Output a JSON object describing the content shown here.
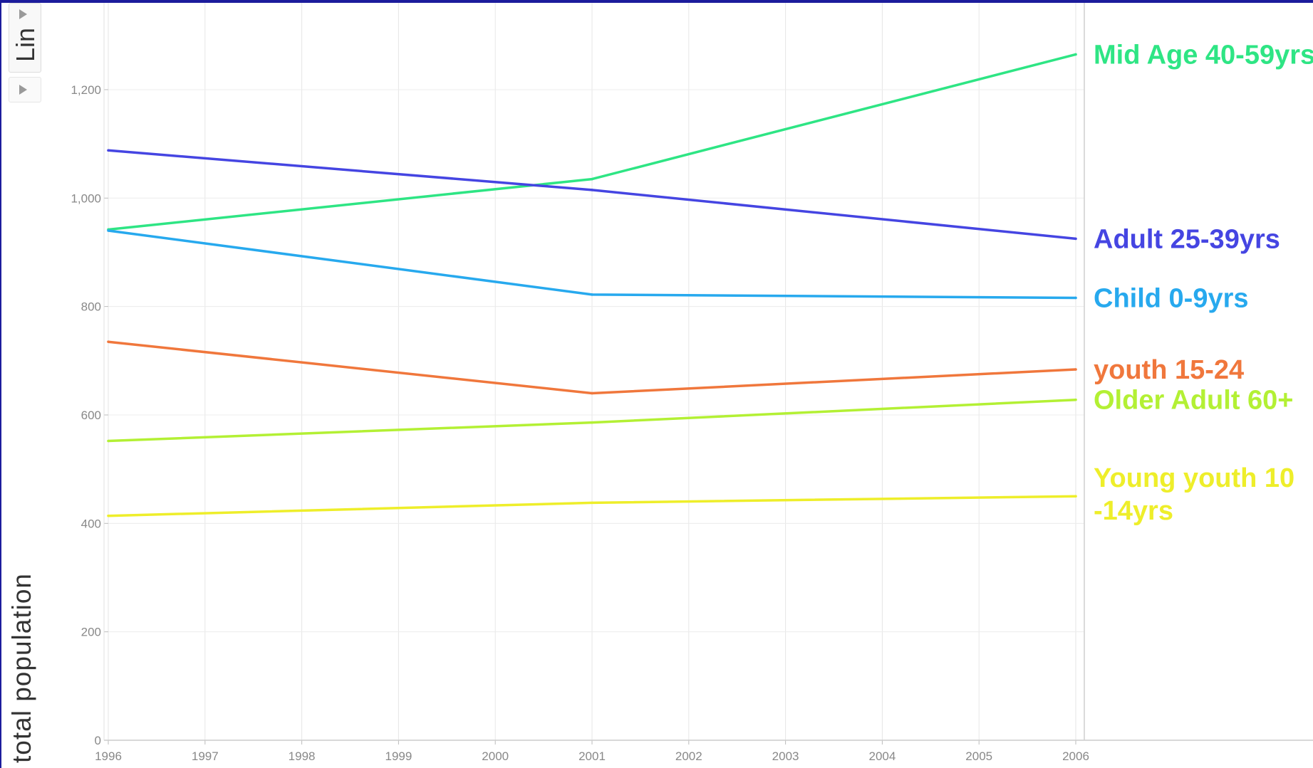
{
  "controls": {
    "scale_label": "Lin"
  },
  "axes": {
    "ylabel": "total population"
  },
  "chart_data": {
    "type": "line",
    "title": "",
    "xlabel": "",
    "ylabel": "total population",
    "x": [
      1996,
      2001,
      2006
    ],
    "xlim": [
      1996,
      2006
    ],
    "ylim": [
      0,
      1350
    ],
    "xticks": [
      "1996",
      "1997",
      "1998",
      "1999",
      "2000",
      "2001",
      "2002",
      "2003",
      "2004",
      "2005",
      "2006"
    ],
    "yticks": [
      0,
      200,
      400,
      600,
      800,
      1000,
      1200
    ],
    "ytick_labels": [
      "0",
      "200",
      "400",
      "600",
      "800",
      "1,000",
      "1,200"
    ],
    "grid": true,
    "legend": "direct labels at line ends (right)",
    "series": [
      {
        "name": "Mid Age 40-59yrs",
        "values": [
          942,
          1035,
          1265
        ],
        "color": "#2ee584",
        "label_lines": [
          "Mid Age 40-59yrs"
        ]
      },
      {
        "name": "Adult 25-39yrs",
        "values": [
          1088,
          1015,
          925
        ],
        "color": "#4545e2",
        "label_lines": [
          "Adult 25-39yrs"
        ]
      },
      {
        "name": "Child 0-9yrs",
        "values": [
          940,
          822,
          816
        ],
        "color": "#27a9ee",
        "label_lines": [
          "Child 0-9yrs"
        ]
      },
      {
        "name": "youth 15-24",
        "values": [
          735,
          640,
          684
        ],
        "color": "#f0773c",
        "label_lines": [
          "youth 15-24"
        ]
      },
      {
        "name": "Older Adult 60+",
        "values": [
          552,
          586,
          628
        ],
        "color": "#b3f034",
        "label_lines": [
          "Older Adult 60+"
        ]
      },
      {
        "name": "Young youth 10 -14yrs",
        "values": [
          414,
          438,
          450
        ],
        "color": "#eeee2a",
        "label_lines": [
          "Young youth 10",
          "-14yrs"
        ]
      }
    ]
  }
}
